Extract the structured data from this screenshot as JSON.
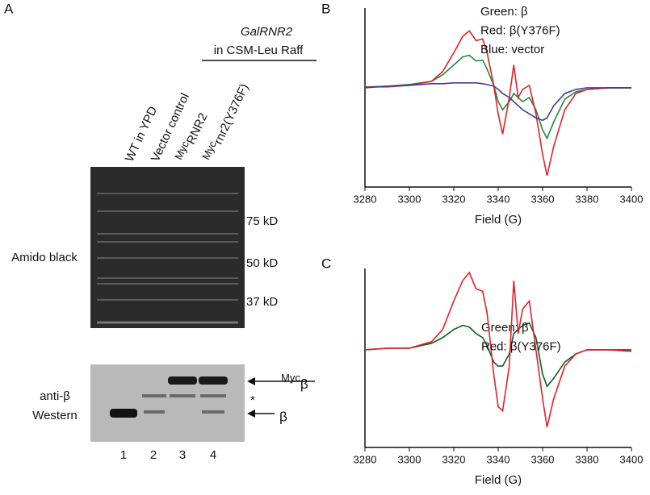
{
  "panel_a": {
    "label": "A",
    "header": "GalRNR2",
    "header_sub": "in CSM-Leu Raff",
    "lanes": [
      {
        "text": "WT in YPD"
      },
      {
        "text": "Vector control"
      },
      {
        "sup": "Myc",
        "text": "RNR2"
      },
      {
        "sup": "Myc",
        "text": "rnr2(Y376F)"
      }
    ],
    "stain_label": "Amido black",
    "markers": [
      "75 kD",
      "50 kD",
      "37 kD"
    ],
    "western_label": [
      "anti-β",
      "Western"
    ],
    "band_labels": [
      {
        "sup": "Myc",
        "text": "β"
      },
      {
        "text": "β"
      }
    ],
    "asterisk": "*",
    "lane_numbers": [
      "1",
      "2",
      "3",
      "4"
    ]
  },
  "chart_data": [
    {
      "type": "line",
      "label": "B",
      "xlabel": "Field (G)",
      "x": [
        3280,
        3290,
        3300,
        3310,
        3315,
        3320,
        3324,
        3327,
        3330,
        3333,
        3335,
        3338,
        3340,
        3342,
        3345,
        3347,
        3349,
        3351,
        3354,
        3357,
        3360,
        3362,
        3365,
        3370,
        3375,
        3380,
        3390,
        3400
      ],
      "series": [
        {
          "name": "Green: β",
          "color": "#1c8a3c",
          "values": [
            0.03,
            0.04,
            0.06,
            0.1,
            0.18,
            0.3,
            0.4,
            0.42,
            0.35,
            0.36,
            0.25,
            0.05,
            -0.15,
            -0.25,
            -0.15,
            -0.05,
            -0.1,
            -0.15,
            -0.1,
            -0.25,
            -0.5,
            -0.6,
            -0.4,
            -0.12,
            -0.03,
            0.0,
            0.02,
            0.02
          ]
        },
        {
          "name": "Red: β(Y376F)",
          "color": "#e3212a",
          "values": [
            0.03,
            0.03,
            0.05,
            0.1,
            0.22,
            0.45,
            0.65,
            0.72,
            0.6,
            0.62,
            0.45,
            0.05,
            -0.3,
            -0.55,
            -0.1,
            0.3,
            -0.1,
            0.0,
            0.05,
            -0.3,
            -0.8,
            -1.06,
            -0.7,
            -0.25,
            -0.05,
            0.0,
            0.02,
            0.02
          ]
        },
        {
          "name": "Blue: vector",
          "color": "#3b3e9a",
          "values": [
            0.02,
            0.04,
            0.05,
            0.07,
            0.07,
            0.08,
            0.08,
            0.08,
            0.08,
            0.07,
            0.06,
            0.04,
            0.0,
            -0.05,
            -0.1,
            -0.15,
            -0.2,
            -0.25,
            -0.3,
            -0.35,
            -0.38,
            -0.35,
            -0.2,
            -0.05,
            0.0,
            0.02,
            0.02,
            0.02
          ]
        }
      ],
      "xlim": [
        3280,
        3400
      ],
      "xticks": [
        3280,
        3300,
        3320,
        3340,
        3360,
        3380,
        3400
      ],
      "ylim": [
        -1.2,
        1
      ]
    },
    {
      "type": "line",
      "label": "C",
      "xlabel": "Field (G)",
      "x": [
        3280,
        3290,
        3300,
        3310,
        3315,
        3320,
        3324,
        3327,
        3330,
        3333,
        3335,
        3338,
        3340,
        3342,
        3345,
        3347,
        3349,
        3351,
        3354,
        3357,
        3360,
        3362,
        3365,
        3370,
        3375,
        3380,
        3390,
        3400
      ],
      "series": [
        {
          "name": "Green: β",
          "color": "#0f5c22",
          "values": [
            0.0,
            0.02,
            0.02,
            0.08,
            0.15,
            0.25,
            0.3,
            0.28,
            0.2,
            0.15,
            0.05,
            -0.15,
            -0.2,
            -0.2,
            -0.05,
            0.2,
            0.25,
            0.3,
            0.33,
            0.15,
            -0.3,
            -0.45,
            -0.35,
            -0.15,
            -0.05,
            0.0,
            0.0,
            0.0
          ]
        },
        {
          "name": "Red: β(Y376F)",
          "color": "#e3212a",
          "values": [
            0.0,
            0.02,
            0.02,
            0.1,
            0.25,
            0.6,
            0.85,
            0.95,
            0.75,
            0.72,
            0.45,
            -0.3,
            -0.7,
            -0.75,
            -0.2,
            0.85,
            0.2,
            0.5,
            0.6,
            0.0,
            -0.6,
            -0.95,
            -0.6,
            -0.2,
            -0.05,
            0.0,
            0.0,
            -0.02
          ]
        }
      ],
      "xlim": [
        3280,
        3400
      ],
      "xticks": [
        3280,
        3300,
        3320,
        3340,
        3360,
        3380,
        3400
      ],
      "ylim": [
        -1.2,
        1
      ]
    }
  ]
}
